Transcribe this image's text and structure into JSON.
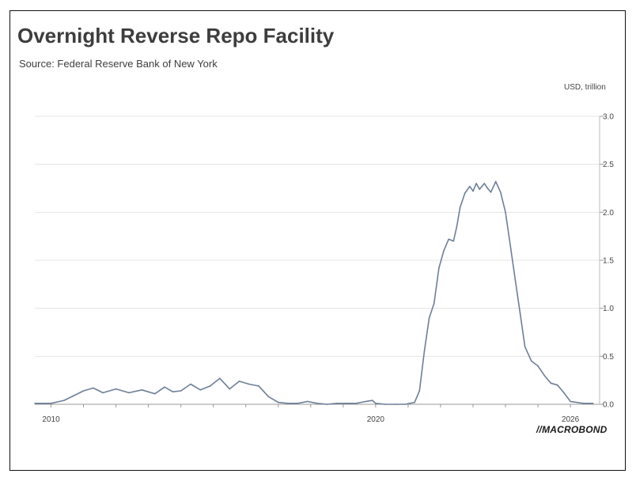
{
  "chart_data": {
    "type": "line",
    "title": "Overnight Reverse Repo Facility",
    "subtitle": "Source: Federal Reserve Bank of New York",
    "ylabel": "USD, trillion",
    "xlim": [
      2009.5,
      2026.9
    ],
    "ylim": [
      0,
      3.0
    ],
    "x_ticks": [
      2010,
      2020,
      2026
    ],
    "x_tick_labels": [
      "2010",
      "2020",
      "2026"
    ],
    "y_ticks": [
      0,
      0.5,
      1.0,
      1.5,
      2.0,
      2.5,
      3.0
    ],
    "y_tick_labels": [
      "0.0",
      "0.5",
      "1.0",
      "1.5",
      "2.0",
      "2.5",
      "3.0"
    ],
    "grid": true,
    "series": [
      {
        "color": "#6e7f99",
        "x": [
          2009.5,
          2010.0,
          2010.4,
          2010.7,
          2011.0,
          2011.3,
          2011.6,
          2012.0,
          2012.4,
          2012.8,
          2013.2,
          2013.5,
          2013.75,
          2014.0,
          2014.3,
          2014.6,
          2014.9,
          2015.2,
          2015.5,
          2015.8,
          2016.1,
          2016.4,
          2016.7,
          2017.0,
          2017.3,
          2017.6,
          2017.9,
          2018.2,
          2018.5,
          2018.8,
          2019.1,
          2019.4,
          2019.7,
          2019.9,
          2020.0,
          2020.3,
          2020.6,
          2020.9,
          2021.2,
          2021.35,
          2021.5,
          2021.65,
          2021.8,
          2021.95,
          2022.1,
          2022.25,
          2022.4,
          2022.5,
          2022.6,
          2022.75,
          2022.9,
          2023.0,
          2023.1,
          2023.2,
          2023.35,
          2023.45,
          2023.55,
          2023.7,
          2023.85,
          2024.0,
          2024.15,
          2024.3,
          2024.45,
          2024.6,
          2024.8,
          2025.0,
          2025.2,
          2025.4,
          2025.6,
          2025.8,
          2026.0,
          2026.4,
          2026.7
        ],
        "values": [
          0.01,
          0.01,
          0.04,
          0.09,
          0.14,
          0.17,
          0.12,
          0.16,
          0.12,
          0.15,
          0.11,
          0.18,
          0.13,
          0.14,
          0.21,
          0.15,
          0.19,
          0.27,
          0.16,
          0.24,
          0.21,
          0.19,
          0.08,
          0.02,
          0.01,
          0.01,
          0.03,
          0.01,
          0.0,
          0.01,
          0.01,
          0.01,
          0.03,
          0.04,
          0.01,
          0.0,
          0.0,
          0.0,
          0.02,
          0.14,
          0.55,
          0.9,
          1.05,
          1.42,
          1.6,
          1.72,
          1.7,
          1.85,
          2.05,
          2.2,
          2.27,
          2.22,
          2.3,
          2.24,
          2.3,
          2.25,
          2.21,
          2.32,
          2.21,
          2.0,
          1.65,
          1.3,
          0.95,
          0.6,
          0.45,
          0.4,
          0.3,
          0.22,
          0.2,
          0.12,
          0.03,
          0.01,
          0.01
        ]
      }
    ]
  },
  "brand": {
    "logo_text": "MACROBOND"
  }
}
